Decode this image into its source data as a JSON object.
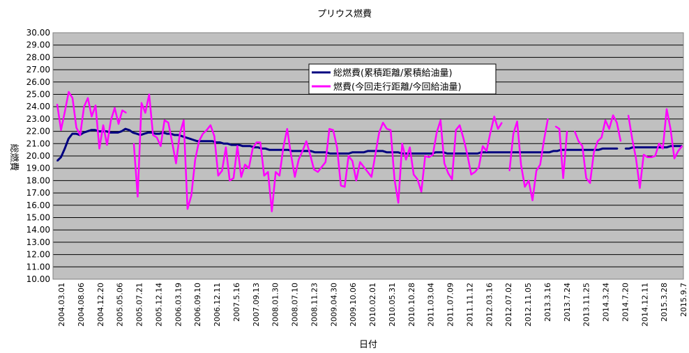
{
  "chart_data": {
    "type": "line",
    "title": "プリウス燃費",
    "xlabel": "日付",
    "ylabel": "総燃費",
    "ylim": [
      10,
      30
    ],
    "ytick_step": 1,
    "y_tick_labels": [
      "10.00",
      "11.00",
      "12.00",
      "13.00",
      "14.00",
      "15.00",
      "16.00",
      "17.00",
      "18.00",
      "19.00",
      "20.00",
      "21.00",
      "22.00",
      "23.00",
      "24.00",
      "25.00",
      "26.00",
      "27.00",
      "28.00",
      "29.00",
      "30.00"
    ],
    "x_tick_labels": [
      "2004.03.01",
      "2004.08.06",
      "2004.12.20",
      "2005.05.06",
      "2005.07.21",
      "2005.12.14",
      "2006.03.19",
      "2006.09.10",
      "2006.12.11",
      "2007.5.16",
      "2007.09.13",
      "2008.01.30",
      "2008.07.10",
      "2008.11.23",
      "2009.04.30",
      "2009.10.06",
      "2010.02.01",
      "2010.05.31",
      "2010.10.28",
      "2011.03.04",
      "2011.07.09",
      "2011.11.12",
      "2012.03.16",
      "2012.07.02",
      "2012.11.05",
      "2013.3.16",
      "2013.7.24",
      "2013.11.25",
      "2014.3.24",
      "2014.7.20",
      "2014.12.11",
      "2015.3.28",
      "2015.9.7"
    ],
    "grid": true,
    "legend_position": "top-center",
    "plot_background": "#c0c0c0",
    "series": [
      {
        "name": "総燃費(累積距離/累積給油量)",
        "color": "#000080",
        "values": [
          19.6,
          19.9,
          20.6,
          21.4,
          21.8,
          21.8,
          21.7,
          21.9,
          22.0,
          22.1,
          22.1,
          22.0,
          22.0,
          22.0,
          21.9,
          21.9,
          21.9,
          22.0,
          22.2,
          22.1,
          21.9,
          21.8,
          21.7,
          21.8,
          21.9,
          21.9,
          21.8,
          21.8,
          21.9,
          21.8,
          21.8,
          21.7,
          21.7,
          21.6,
          21.5,
          21.4,
          21.3,
          21.2,
          21.2,
          21.2,
          21.2,
          21.2,
          21.1,
          21.1,
          21.0,
          21.0,
          20.9,
          20.9,
          20.9,
          20.8,
          20.8,
          20.8,
          20.7,
          20.7,
          20.6,
          20.6,
          20.5,
          20.5,
          20.5,
          20.5,
          20.5,
          20.5,
          20.4,
          20.4,
          20.4,
          20.4,
          20.4,
          20.4,
          20.3,
          20.3,
          20.3,
          20.3,
          20.2,
          20.2,
          20.2,
          20.2,
          20.2,
          20.2,
          20.3,
          20.3,
          20.3,
          20.3,
          20.4,
          20.4,
          20.4,
          20.4,
          20.4,
          20.3,
          20.3,
          20.3,
          20.3,
          20.2,
          20.2,
          20.2,
          20.2,
          20.2,
          20.2,
          20.2,
          20.2,
          20.2,
          20.3,
          20.3,
          20.3,
          20.2,
          20.2,
          20.2,
          20.2,
          20.2,
          20.2,
          20.2,
          20.2,
          20.2,
          20.3,
          20.3,
          20.3,
          20.3,
          20.3,
          20.3,
          20.3,
          20.3,
          20.3,
          20.3,
          20.3,
          20.3,
          20.3,
          20.3,
          20.3,
          20.3,
          20.3,
          20.3,
          20.3,
          20.4,
          20.4,
          20.5,
          20.5,
          20.5,
          20.5,
          20.5,
          20.5,
          20.5,
          20.5,
          20.5,
          20.5,
          20.5,
          20.6,
          20.6,
          20.6,
          20.6,
          20.6,
          null,
          20.6,
          20.6,
          20.7,
          20.7,
          20.7,
          20.7,
          20.7,
          20.7,
          20.7,
          20.7,
          20.7,
          20.7,
          20.8,
          20.8,
          20.8,
          20.8
        ]
      },
      {
        "name": "燃費(今回走行距離/今回給油量)",
        "color": "#ff00ff",
        "values": [
          24.2,
          22.1,
          23.6,
          25.2,
          24.7,
          22.3,
          21.7,
          24.0,
          24.7,
          23.2,
          24.1,
          20.6,
          22.5,
          20.9,
          22.9,
          23.9,
          22.6,
          23.7,
          23.5,
          null,
          21.0,
          16.7,
          24.3,
          23.5,
          25.0,
          21.7,
          21.5,
          20.8,
          22.9,
          22.7,
          21.1,
          19.4,
          21.8,
          22.9,
          15.7,
          16.8,
          19.7,
          21.2,
          21.8,
          22.1,
          22.5,
          21.6,
          18.4,
          18.8,
          20.7,
          18.0,
          18.2,
          20.8,
          18.3,
          19.3,
          19.0,
          20.6,
          21.1,
          21.1,
          18.4,
          18.7,
          15.5,
          18.7,
          18.4,
          20.7,
          22.2,
          20.1,
          18.3,
          19.7,
          20.4,
          21.2,
          20.1,
          18.9,
          18.7,
          19.1,
          19.5,
          22.2,
          22.1,
          20.7,
          17.6,
          17.5,
          20.0,
          19.6,
          18.0,
          19.5,
          19.1,
          18.7,
          18.3,
          20.1,
          21.9,
          22.7,
          22.2,
          22.1,
          18.1,
          16.2,
          21.0,
          19.7,
          20.7,
          18.5,
          18.1,
          17.1,
          20.0,
          19.9,
          20.1,
          21.9,
          22.9,
          19.4,
          18.6,
          18.1,
          22.1,
          22.5,
          21.4,
          20.1,
          18.5,
          18.7,
          19.1,
          20.8,
          20.4,
          21.9,
          23.2,
          22.2,
          22.7,
          null,
          18.8,
          21.8,
          22.8,
          19.3,
          17.5,
          18.0,
          16.4,
          18.8,
          19.3,
          21.3,
          23.0,
          null,
          22.4,
          22.2,
          18.2,
          22.0,
          null,
          22.0,
          21.2,
          20.8,
          18.2,
          17.8,
          20.3,
          21.2,
          21.5,
          22.9,
          22.2,
          23.3,
          22.7,
          21.2,
          null,
          23.3,
          21.4,
          19.8,
          17.4,
          20.1,
          19.9,
          19.9,
          20.0,
          21.0,
          20.6,
          23.8,
          22.2,
          19.8,
          20.4,
          20.8
        ]
      }
    ]
  }
}
